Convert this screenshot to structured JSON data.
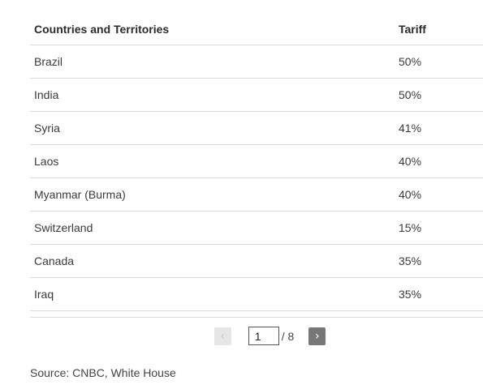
{
  "table": {
    "headers": {
      "country": "Countries and Territories",
      "tariff": "Tariff"
    },
    "rows": [
      {
        "country": "Brazil",
        "tariff": "50%"
      },
      {
        "country": "India",
        "tariff": "50%"
      },
      {
        "country": "Syria",
        "tariff": "41%"
      },
      {
        "country": "Laos",
        "tariff": "40%"
      },
      {
        "country": "Myanmar (Burma)",
        "tariff": "40%"
      },
      {
        "country": "Switzerland",
        "tariff": "15%"
      },
      {
        "country": "Canada",
        "tariff": "35%"
      },
      {
        "country": "Iraq",
        "tariff": "35%"
      }
    ]
  },
  "pagination": {
    "prev_label": "‹",
    "next_label": "›",
    "current_page": "1",
    "total_label": "/ 8"
  },
  "source": "Source: CNBC, White House"
}
